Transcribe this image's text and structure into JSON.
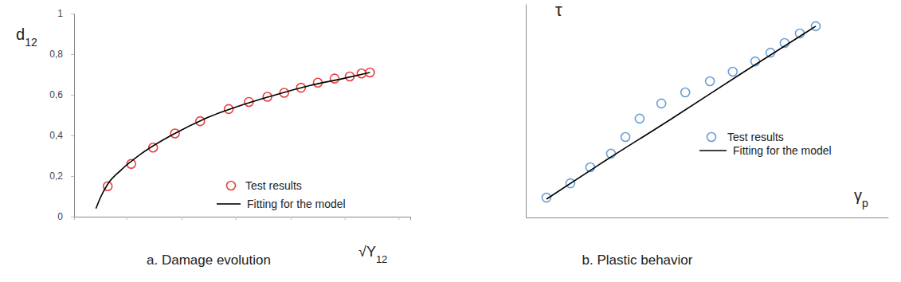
{
  "chart_data": [
    {
      "type": "scatter",
      "title": "a. Damage evolution",
      "x_label": "√Y12",
      "y_label": "d12",
      "xlim": [
        0,
        100
      ],
      "ylim": [
        0,
        1
      ],
      "xticks": [
        0,
        15.5,
        32,
        48,
        64.5,
        80.5,
        96.5
      ],
      "yticks": [
        0,
        {
          "value": 0.2,
          "label": "0,2"
        },
        {
          "value": 0.4,
          "label": "0,4"
        },
        {
          "value": 0.6,
          "label": "0,6"
        },
        {
          "value": 0.8,
          "label": "0,8"
        },
        1
      ],
      "tick_labels": "y",
      "legend": "lower right",
      "series": [
        {
          "name": "Test results",
          "type": "scatter",
          "marker": "circle",
          "color": "#e8413c",
          "x": [
            10,
            17,
            23.5,
            30,
            37.5,
            46,
            52,
            57.5,
            62.5,
            67.5,
            72.5,
            77.5,
            82,
            85.5,
            88
          ],
          "values": [
            0.15,
            0.26,
            0.34,
            0.41,
            0.47,
            0.53,
            0.565,
            0.59,
            0.61,
            0.635,
            0.66,
            0.68,
            0.69,
            0.705,
            0.71
          ]
        },
        {
          "name": "Fitting for the model",
          "type": "line",
          "line_style": "solid",
          "color": "#000000",
          "x": [
            6.5,
            8,
            10,
            14,
            20,
            30,
            40,
            50,
            60,
            70,
            80,
            88
          ],
          "values": [
            0.04,
            0.1,
            0.16,
            0.23,
            0.31,
            0.41,
            0.49,
            0.55,
            0.6,
            0.645,
            0.68,
            0.71
          ]
        }
      ]
    },
    {
      "type": "scatter",
      "title": "b. Plastic behavior",
      "x_label": "γp",
      "y_label": "τ",
      "xlim": [
        0,
        100
      ],
      "ylim": [
        0,
        100
      ],
      "tick_labels": false,
      "legend": "lower right",
      "series": [
        {
          "name": "Test results",
          "type": "scatter",
          "marker": "circle",
          "color": "#6a9fd4",
          "x": [
            5.7,
            12.3,
            17.8,
            23.5,
            27.5,
            31.4,
            37.4,
            44,
            50.8,
            57.1,
            63.3,
            67.5,
            71.4,
            75.6,
            80
          ],
          "values": [
            9.3,
            16,
            23.5,
            29.9,
            37.7,
            46.3,
            53.4,
            58.6,
            63.8,
            68.3,
            73.1,
            77.2,
            81.7,
            86.2,
            89.6
          ]
        },
        {
          "name": "Fitting for the model",
          "type": "line",
          "line_style": "solid",
          "color": "#000000",
          "x": [
            5.7,
            20,
            40,
            60,
            80
          ],
          "values": [
            8.6,
            24.5,
            46,
            68,
            89.6
          ]
        }
      ]
    }
  ]
}
